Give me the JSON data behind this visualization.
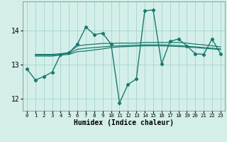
{
  "title": "",
  "xlabel": "Humidex (Indice chaleur)",
  "xlim": [
    -0.5,
    23.5
  ],
  "ylim": [
    11.65,
    14.85
  ],
  "yticks": [
    12,
    13,
    14
  ],
  "xticks": [
    0,
    1,
    2,
    3,
    4,
    5,
    6,
    7,
    8,
    9,
    10,
    11,
    12,
    13,
    14,
    15,
    16,
    17,
    18,
    19,
    20,
    21,
    22,
    23
  ],
  "bg_color": "#d4efea",
  "grid_color": "#aad8d0",
  "line_color": "#1a7a6e",
  "lines": [
    {
      "x": [
        0,
        1,
        2,
        3,
        4,
        5,
        6,
        7,
        8,
        9,
        10,
        11,
        12,
        13,
        14,
        15,
        16,
        17,
        18,
        19,
        20,
        21,
        22,
        23
      ],
      "y": [
        12.88,
        12.55,
        12.65,
        12.78,
        13.3,
        13.35,
        13.6,
        14.1,
        13.88,
        13.92,
        13.6,
        11.88,
        12.42,
        12.58,
        14.58,
        14.6,
        13.02,
        13.68,
        13.75,
        13.55,
        13.32,
        13.3,
        13.75,
        13.32
      ],
      "marker": true,
      "lw": 1.0
    },
    {
      "x": [
        1,
        2,
        3,
        4,
        5,
        6,
        7,
        8,
        9,
        10,
        11,
        12,
        13,
        14,
        15,
        16,
        17,
        18,
        19,
        20,
        21,
        22,
        23
      ],
      "y": [
        13.3,
        13.3,
        13.3,
        13.32,
        13.35,
        13.55,
        13.58,
        13.6,
        13.62,
        13.62,
        13.63,
        13.63,
        13.63,
        13.65,
        13.65,
        13.65,
        13.65,
        13.65,
        13.63,
        13.6,
        13.58,
        13.55,
        13.52
      ],
      "marker": false,
      "lw": 0.9
    },
    {
      "x": [
        1,
        2,
        3,
        4,
        5,
        6,
        7,
        8,
        9,
        10,
        11,
        12,
        13,
        14,
        15,
        16,
        17,
        18,
        19,
        20,
        21,
        22,
        23
      ],
      "y": [
        13.28,
        13.28,
        13.28,
        13.3,
        13.33,
        13.45,
        13.48,
        13.5,
        13.52,
        13.54,
        13.55,
        13.56,
        13.57,
        13.58,
        13.58,
        13.58,
        13.57,
        13.56,
        13.54,
        13.52,
        13.5,
        13.48,
        13.46
      ],
      "marker": false,
      "lw": 0.9
    },
    {
      "x": [
        1,
        2,
        3,
        4,
        5,
        6,
        7,
        8,
        9,
        10,
        11,
        12,
        13,
        14,
        15,
        16,
        17,
        18,
        19,
        20,
        21,
        22,
        23
      ],
      "y": [
        13.25,
        13.25,
        13.25,
        13.28,
        13.3,
        13.38,
        13.4,
        13.43,
        13.46,
        13.5,
        13.52,
        13.53,
        13.54,
        13.55,
        13.55,
        13.55,
        13.54,
        13.53,
        13.52,
        13.5,
        13.48,
        13.46,
        13.44
      ],
      "marker": false,
      "lw": 0.9
    }
  ]
}
